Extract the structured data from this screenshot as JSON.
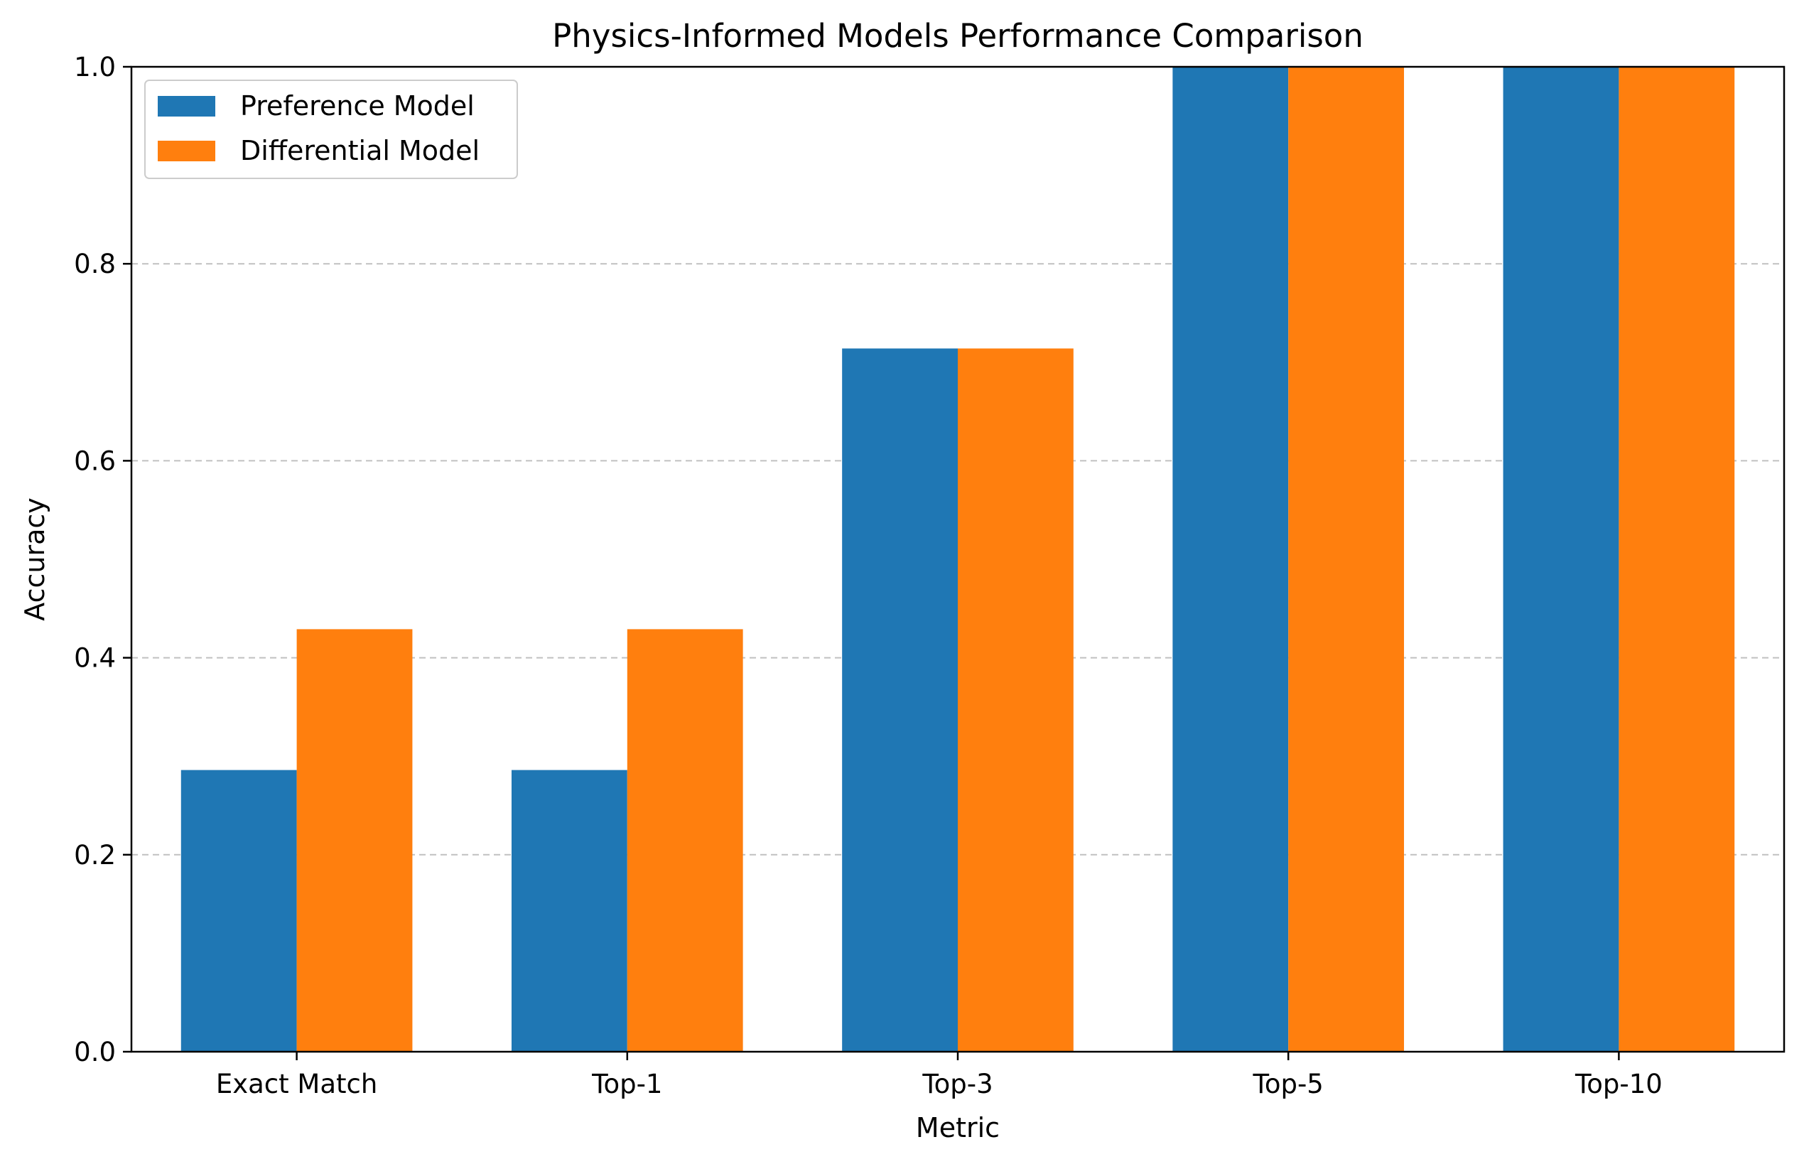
{
  "chart_data": {
    "type": "bar",
    "title": "Physics-Informed Models Performance Comparison",
    "xlabel": "Metric",
    "ylabel": "Accuracy",
    "categories": [
      "Exact Match",
      "Top-1",
      "Top-3",
      "Top-5",
      "Top-10"
    ],
    "series": [
      {
        "name": "Preference Model",
        "color": "#1f77b4",
        "values": [
          0.286,
          0.286,
          0.714,
          1.0,
          1.0
        ]
      },
      {
        "name": "Differential Model",
        "color": "#ff7f0e",
        "values": [
          0.429,
          0.429,
          0.714,
          1.0,
          1.0
        ]
      }
    ],
    "ylim": [
      0,
      1.0
    ],
    "yticks": [
      "0.0",
      "0.2",
      "0.4",
      "0.6",
      "0.8",
      "1.0"
    ],
    "grid": "y-dashed",
    "legend_position": "top-left"
  }
}
